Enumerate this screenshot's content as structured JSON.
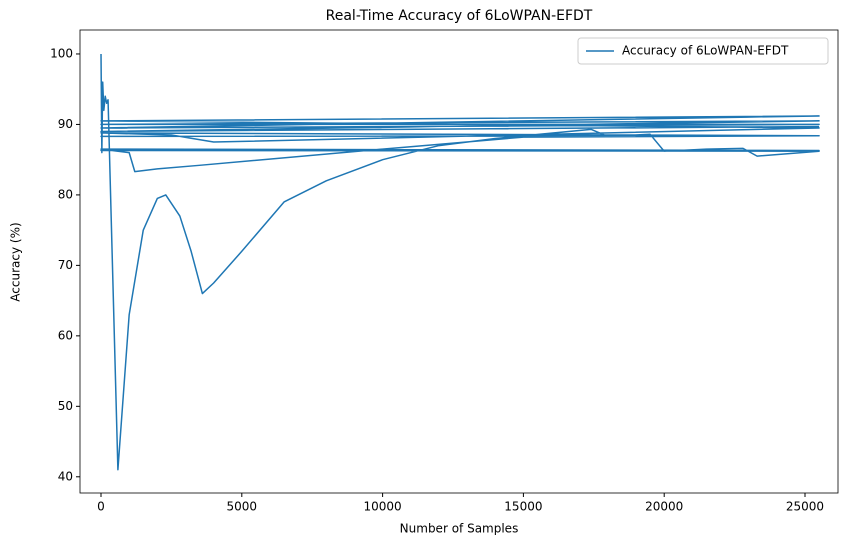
{
  "chart_data": {
    "type": "line",
    "title": "Real-Time Accuracy of 6LoWPAN-EFDT",
    "x_label": "Number of Samples",
    "y_label": "Accuracy (%)",
    "x": [
      0,
      30,
      60,
      100,
      150,
      200,
      250,
      600,
      1000,
      1500,
      2000,
      2300,
      2800,
      3200,
      3600,
      4000,
      5000,
      6500,
      8000,
      10000,
      12000,
      14000,
      17400,
      18000,
      19500,
      20000,
      21500,
      22800,
      23300,
      25500,
      0,
      25500,
      0,
      1000,
      1200,
      2000,
      3500,
      10000,
      15000,
      25500,
      0,
      25500,
      0,
      2500,
      4000,
      25500,
      0,
      25500,
      0,
      25500,
      0,
      25500,
      0,
      25500
    ],
    "series": [
      {
        "name": "Accuracy of 6LoWPAN-EFDT",
        "color": "#1f77b4",
        "values": [
          100,
          86,
          96,
          92,
          94,
          93,
          93.5,
          41,
          63,
          75,
          79.5,
          80,
          77,
          72,
          66,
          67.5,
          72,
          79,
          82,
          85,
          87,
          88,
          89.3,
          88.3,
          88.6,
          86.2,
          86.5,
          86.6,
          85.5,
          86.2,
          86.3,
          86.3,
          86.5,
          86,
          83.3,
          83.7,
          84.2,
          86.5,
          88.2,
          88.4,
          88.3,
          88.4,
          88.8,
          88.5,
          87.5,
          89.5,
          90.5,
          91.2,
          89.5,
          90,
          90,
          90.5,
          89,
          89.7
        ]
      }
    ],
    "xlim": [
      -746,
      26172
    ],
    "ylim": [
      37.7,
      103.4
    ],
    "xticks": [
      0,
      5000,
      10000,
      15000,
      20000,
      25000
    ],
    "yticks": [
      40,
      50,
      60,
      70,
      80,
      90,
      100
    ],
    "grid": false,
    "legend": "upper right"
  }
}
